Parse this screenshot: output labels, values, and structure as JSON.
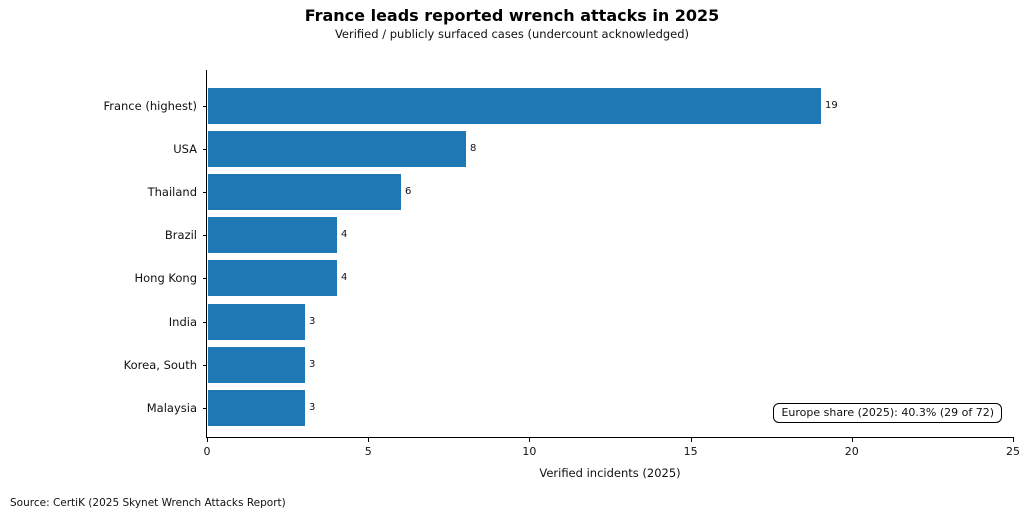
{
  "chart_data": {
    "type": "bar",
    "orientation": "horizontal",
    "title": "France leads reported wrench attacks in 2025",
    "subtitle": "Verified / publicly surfaced cases (undercount acknowledged)",
    "categories": [
      "France (highest)",
      "USA",
      "Thailand",
      "Brazil",
      "Hong Kong",
      "India",
      "Korea, South",
      "Malaysia"
    ],
    "values": [
      19,
      8,
      6,
      4,
      4,
      3,
      3,
      3
    ],
    "xlabel": "Verified incidents (2025)",
    "xlim": [
      0,
      25
    ],
    "xticks": [
      0,
      5,
      10,
      15,
      20,
      25
    ],
    "bar_color": "#1f77b4",
    "grid": false,
    "legend": "none",
    "value_labels_shown": true,
    "annotation": "Europe share (2025): 40.3% (29 of 72)",
    "source": "Source: CertiK (2025 Skynet Wrench Attacks Report)"
  }
}
